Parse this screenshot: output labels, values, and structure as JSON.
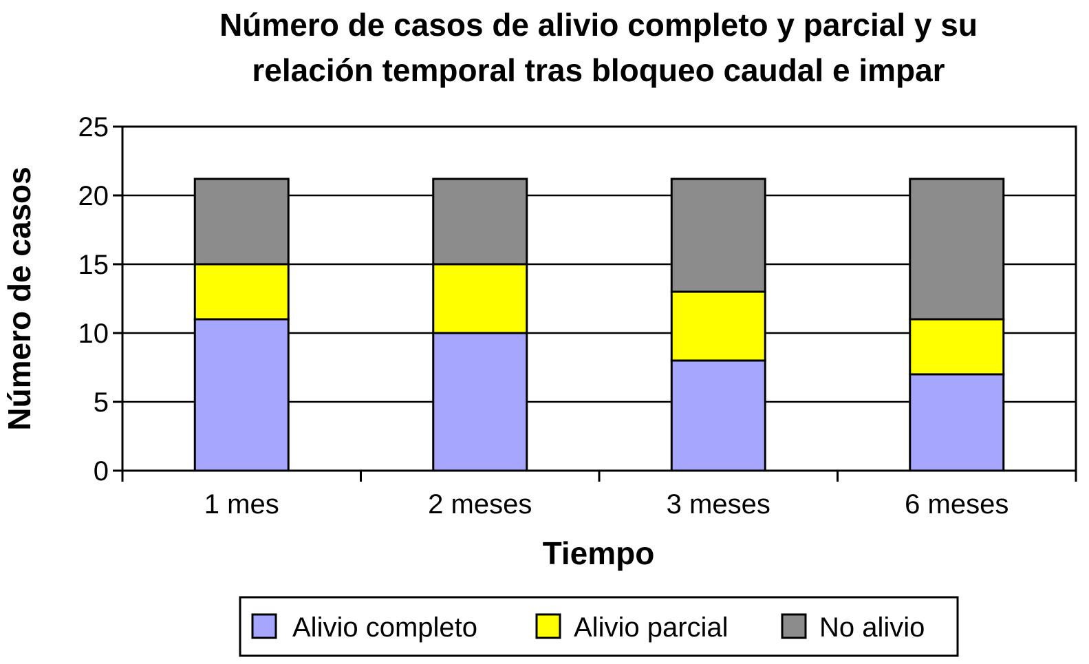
{
  "chart_data": {
    "type": "bar",
    "stacked": true,
    "title_lines": [
      "Número de casos de alivio completo y parcial y su",
      "relación temporal tras bloqueo caudal e impar"
    ],
    "xlabel": "Tiempo",
    "ylabel": "Número de casos",
    "ylim": [
      0,
      25
    ],
    "yticks": [
      "0",
      "5",
      "10",
      "15",
      "20",
      "25"
    ],
    "grid": true,
    "legend_position": "bottom",
    "categories": [
      "1 mes",
      "2 meses",
      "3 meses",
      "6 meses"
    ],
    "series": [
      {
        "name": "Alivio completo",
        "color": "#a6a6ff",
        "values": [
          11,
          10,
          8,
          7
        ]
      },
      {
        "name": "Alivio parcial",
        "color": "#ffff00",
        "values": [
          4,
          5,
          5,
          4
        ]
      },
      {
        "name": "No alivio",
        "color": "#8c8c8c",
        "values": [
          6.2,
          6.2,
          8.2,
          10.2
        ]
      }
    ]
  }
}
